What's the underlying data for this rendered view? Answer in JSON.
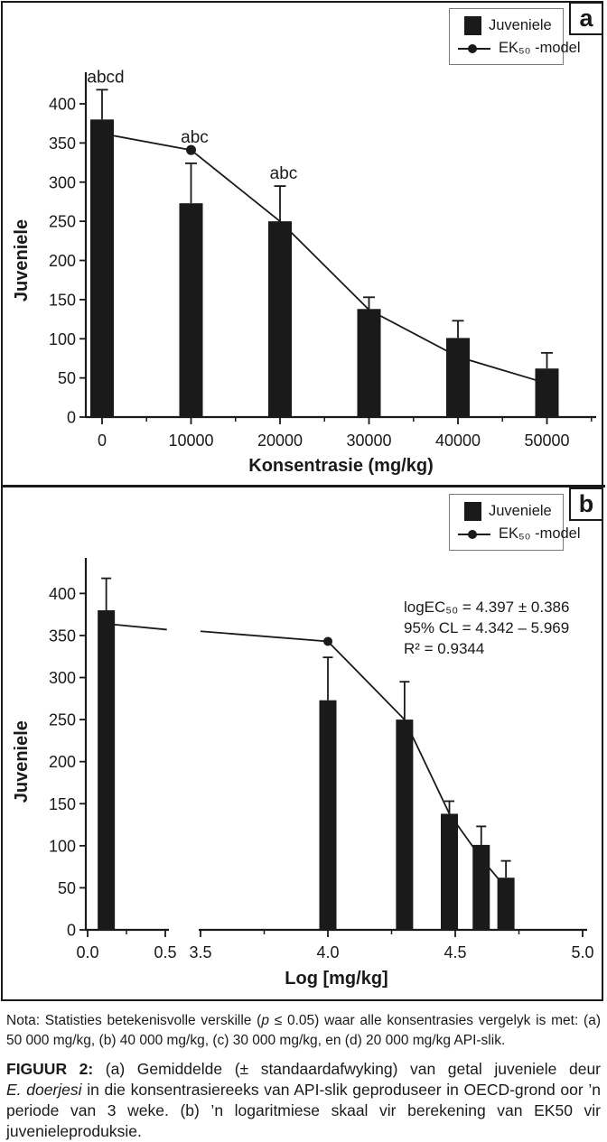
{
  "colors": {
    "ink": "#1a1a1a",
    "background": "#ffffff",
    "legend_border": "#7a7a7a"
  },
  "figure": {
    "panels": [
      {
        "label": "a",
        "legend": {
          "bar_label": "Juveniele",
          "line_label": "EK₅₀ -model"
        },
        "y_axis": {
          "title": "Juveniele",
          "tick_labels": [
            "0",
            "50",
            "100",
            "150",
            "200",
            "250",
            "300",
            "350",
            "400"
          ]
        },
        "x_axis": {
          "title": "Konsentrasie (mg/kg)",
          "tick_labels": [
            "0",
            "10000",
            "20000",
            "30000",
            "40000",
            "50000"
          ]
        }
      },
      {
        "label": "b",
        "legend": {
          "bar_label": "Juveniele",
          "line_label": "EK₅₀ -model"
        },
        "y_axis": {
          "title": "Juveniele",
          "tick_labels": [
            "0",
            "50",
            "100",
            "150",
            "200",
            "250",
            "300",
            "350",
            "400"
          ]
        },
        "x_axis": {
          "title": "Log [mg/kg]",
          "segment1_tick_labels": [
            "0.0",
            "0.5"
          ],
          "segment2_tick_labels": [
            "3.5",
            "4.0",
            "4.5",
            "5.0"
          ]
        },
        "annotation": {
          "line1": "logEC₅₀ = 4.397 ± 0.386",
          "line2": "95% CL = 4.342 – 5.969",
          "line3": "R² = 0.9344"
        }
      }
    ]
  },
  "chart_data": [
    {
      "type": "bar",
      "panel": "a",
      "title": "",
      "xlabel": "Konsentrasie (mg/kg)",
      "ylabel": "Juveniele",
      "ylim": [
        0,
        440
      ],
      "categories": [
        0,
        10000,
        20000,
        30000,
        40000,
        50000
      ],
      "series": [
        {
          "name": "Juveniele",
          "type": "bar",
          "values": [
            380,
            273,
            250,
            138,
            101,
            62
          ],
          "sd_upper": [
            38,
            51,
            45,
            15,
            22,
            20
          ]
        },
        {
          "name": "EK₅₀ -model",
          "type": "line",
          "values": [
            362,
            341,
            250,
            137,
            77,
            43
          ],
          "marker_at_x": 10000
        }
      ],
      "sig_labels": [
        "abcd",
        "abc",
        "abc",
        "",
        "",
        ""
      ],
      "legend_position": "upper right",
      "grid": false
    },
    {
      "type": "bar",
      "panel": "b",
      "title": "",
      "xlabel": "Log [mg/kg]",
      "ylabel": "Juveniele",
      "ylim": [
        0,
        440
      ],
      "x_scale": "log10_broken_axis",
      "axis_break": {
        "left_range": [
          0.0,
          0.5
        ],
        "right_range": [
          3.5,
          5.0
        ]
      },
      "control_bar_position": 0.12,
      "categories_log": [
        4.0,
        4.301,
        4.477,
        4.602,
        4.699
      ],
      "series": [
        {
          "name": "Juveniele",
          "type": "bar",
          "values": [
            380,
            273,
            250,
            138,
            101,
            62
          ],
          "sd_upper": [
            38,
            51,
            45,
            15,
            22,
            20
          ]
        },
        {
          "name": "EK₅₀ -model",
          "type": "line",
          "left_points": [
            [
              0.17,
              363
            ],
            [
              0.51,
              357
            ]
          ],
          "right_points": [
            [
              3.5,
              355
            ],
            [
              4.0,
              343
            ],
            [
              4.301,
              250
            ],
            [
              4.477,
              138
            ],
            [
              4.602,
              85
            ],
            [
              4.699,
              50
            ]
          ],
          "marker_at": [
            4.0,
            343
          ]
        }
      ],
      "fit_stats": {
        "logEC50": "4.397 ± 0.386",
        "CL95": "4.342 – 5.969",
        "R2": 0.9344
      },
      "legend_position": "upper right",
      "grid": false
    }
  ],
  "note": {
    "prefix": "Nota: Statisties betekenisvolle verskille (",
    "italic_p": "p",
    "suffix": " ≤ 0.05) waar alle konsentrasies vergelyk is met: (a) 50 000 mg/kg, (b) 40 000 mg/kg, (c) 30 000 mg/kg, en (d) 20 000 mg/kg API-slik."
  },
  "caption": {
    "label": "FIGUUR 2:",
    "part1": " (a) Gemiddelde (± standaardafwyking) van getal juveniele deur ",
    "species_italic": "E. doerjesi",
    "part2": " in die konsentrasiereeks van API-slik geproduseer in OECD-grond oor ’n periode van 3 weke. (b) ’n logaritmiese skaal vir berekening van EK50 vir juvenieleproduksie."
  }
}
